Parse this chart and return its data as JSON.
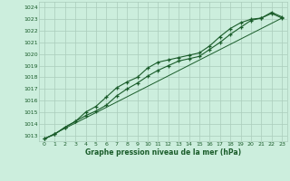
{
  "xlabel": "Graphe pression niveau de la mer (hPa)",
  "bg_color": "#cceedd",
  "grid_color": "#aaccbb",
  "line_color": "#1a5c2a",
  "ylim": [
    1012.5,
    1024.5
  ],
  "xlim": [
    -0.5,
    23.5
  ],
  "yticks": [
    1013,
    1014,
    1015,
    1016,
    1017,
    1018,
    1019,
    1020,
    1021,
    1022,
    1023,
    1024
  ],
  "xticks": [
    0,
    1,
    2,
    3,
    4,
    5,
    6,
    7,
    8,
    9,
    10,
    11,
    12,
    13,
    14,
    15,
    16,
    17,
    18,
    19,
    20,
    21,
    22,
    23
  ],
  "line1_x": [
    0,
    1,
    2,
    3,
    4,
    5,
    6,
    7,
    8,
    9,
    10,
    11,
    12,
    13,
    14,
    15,
    16,
    17,
    18,
    19,
    20,
    21,
    22,
    23
  ],
  "line1_y": [
    1012.7,
    1013.1,
    1013.7,
    1014.2,
    1014.7,
    1015.1,
    1015.6,
    1016.4,
    1017.0,
    1017.5,
    1018.1,
    1018.6,
    1019.0,
    1019.4,
    1019.6,
    1019.8,
    1020.4,
    1021.0,
    1021.7,
    1022.3,
    1022.9,
    1023.1,
    1023.5,
    1023.1
  ],
  "line2_x": [
    0,
    1,
    2,
    3,
    4,
    5,
    6,
    7,
    8,
    9,
    10,
    11,
    12,
    13,
    14,
    15,
    16,
    17,
    18,
    19,
    20,
    21,
    22,
    23
  ],
  "line2_y": [
    1012.7,
    1013.1,
    1013.7,
    1014.2,
    1015.0,
    1015.5,
    1016.3,
    1017.1,
    1017.6,
    1018.0,
    1018.8,
    1019.3,
    1019.5,
    1019.7,
    1019.9,
    1020.1,
    1020.7,
    1021.5,
    1022.2,
    1022.7,
    1023.0,
    1023.1,
    1023.6,
    1023.2
  ],
  "line3_x": [
    0,
    23
  ],
  "line3_y": [
    1012.7,
    1023.1
  ]
}
